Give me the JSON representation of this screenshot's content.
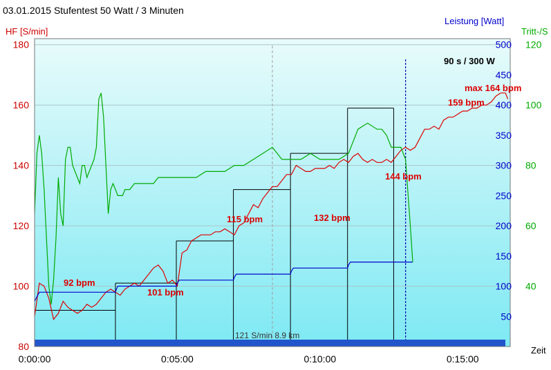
{
  "chart_data": {
    "type": "line",
    "title": "03.01.2015 Stufentest 50 Watt / 3 Minuten",
    "left_axis_label": "HF [S/min]",
    "right_axis1_label": "Leistung [Watt]",
    "right_axis2_label": "Tritt-/S",
    "xlabel": "Zeit",
    "x_ticks": [
      "0:00:00",
      "0:05:00",
      "0:10:00",
      "0:15:00"
    ],
    "hf_ticks": [
      "80",
      "100",
      "120",
      "140",
      "160",
      "180"
    ],
    "watt_ticks": [
      "50",
      "100",
      "150",
      "200",
      "250",
      "300",
      "350",
      "400",
      "450",
      "500"
    ],
    "cad_ticks": [
      "40",
      "60",
      "80",
      "100",
      "120"
    ],
    "xlim_seconds": [
      0,
      1000
    ],
    "hf_ylim": [
      80,
      182
    ],
    "watt_ylim": [
      0,
      510
    ],
    "cad_ylim": [
      20,
      122
    ],
    "grid": true,
    "colors": {
      "plot_top": "#e8fbfb",
      "plot_bottom": "#7ee9f3",
      "heart_rate": "#dd0000",
      "power": "#0000cc",
      "cadence": "#00aa00",
      "annotation": "#dd0000",
      "left_axis": "#cc0000",
      "right_axis1": "#0000cc",
      "right_axis2": "#00aa00",
      "distance_bar": "#2255cc"
    },
    "series": [
      {
        "name": "HF [S/min]",
        "axis": "hf",
        "x": [
          0,
          10,
          20,
          30,
          40,
          50,
          60,
          70,
          80,
          90,
          100,
          110,
          120,
          130,
          140,
          150,
          160,
          170,
          180,
          185,
          190,
          200,
          210,
          220,
          230,
          240,
          250,
          260,
          270,
          280,
          290,
          300,
          310,
          320,
          330,
          340,
          350,
          360,
          370,
          380,
          390,
          400,
          410,
          420,
          430,
          440,
          450,
          460,
          470,
          480,
          490,
          500,
          510,
          520,
          530,
          540,
          550,
          560,
          570,
          580,
          590,
          600,
          610,
          620,
          630,
          640,
          650,
          660,
          670,
          680,
          690,
          700,
          710,
          720,
          730,
          740,
          750,
          760,
          770,
          780,
          790,
          800,
          810,
          820,
          830,
          840,
          850,
          860,
          870,
          880,
          890,
          900,
          910,
          920,
          930,
          940,
          950,
          960,
          970,
          980,
          990,
          995
        ],
        "values": [
          90,
          101,
          100,
          96,
          89,
          91,
          95,
          93,
          92,
          91,
          92,
          94,
          93,
          94,
          96,
          98,
          99,
          98,
          97,
          98,
          99,
          100,
          101,
          100,
          102,
          104,
          106,
          107,
          105,
          101,
          102,
          100,
          111,
          112,
          115,
          116,
          117,
          117,
          117,
          118,
          118,
          119,
          118,
          117,
          120,
          121,
          124,
          127,
          126,
          129,
          131,
          133,
          133,
          135,
          137,
          137,
          140,
          139,
          138,
          138,
          139,
          139,
          139,
          140,
          139,
          141,
          142,
          141,
          143,
          144,
          142,
          141,
          142,
          141,
          141,
          142,
          141,
          143,
          145,
          146,
          145,
          146,
          149,
          152,
          152,
          153,
          152,
          155,
          156,
          156,
          157,
          158,
          158,
          159,
          159,
          160,
          160,
          161,
          163,
          164,
          164,
          162
        ]
      },
      {
        "name": "Leistung [Watt]",
        "axis": "watt",
        "x": [
          0,
          10,
          40,
          100,
          170,
          172,
          175,
          180,
          200,
          240,
          298,
          300,
          304,
          400,
          418,
          420,
          424,
          520,
          538,
          540,
          544,
          640,
          658,
          660,
          664,
          755,
          780,
          795
        ],
        "values": [
          75,
          90,
          90,
          90,
          90,
          95,
          100,
          100,
          100,
          100,
          100,
          105,
          110,
          110,
          110,
          115,
          120,
          120,
          120,
          125,
          130,
          130,
          130,
          135,
          140,
          140,
          140,
          140
        ]
      },
      {
        "name": "Tritt-/S",
        "axis": "cad",
        "x": [
          0,
          5,
          10,
          15,
          20,
          25,
          30,
          35,
          40,
          45,
          50,
          55,
          60,
          65,
          70,
          75,
          80,
          85,
          90,
          95,
          100,
          105,
          110,
          115,
          120,
          125,
          130,
          135,
          140,
          145,
          150,
          155,
          160,
          165,
          170,
          175,
          180,
          185,
          190,
          195,
          200,
          210,
          220,
          230,
          240,
          250,
          260,
          270,
          280,
          290,
          300,
          320,
          340,
          360,
          380,
          400,
          420,
          440,
          460,
          480,
          500,
          520,
          540,
          560,
          580,
          600,
          620,
          640,
          660,
          680,
          700,
          720,
          730,
          740,
          750,
          760,
          770,
          780,
          790,
          795
        ],
        "values": [
          64,
          84,
          90,
          84,
          72,
          56,
          40,
          34,
          42,
          56,
          76,
          64,
          60,
          82,
          86,
          86,
          80,
          78,
          76,
          74,
          80,
          80,
          76,
          78,
          80,
          82,
          86,
          102,
          104,
          96,
          80,
          64,
          72,
          74,
          72,
          70,
          70,
          70,
          72,
          72,
          72,
          74,
          74,
          74,
          74,
          74,
          76,
          76,
          76,
          76,
          76,
          76,
          76,
          78,
          78,
          78,
          80,
          80,
          82,
          84,
          86,
          82,
          82,
          82,
          84,
          82,
          82,
          82,
          84,
          92,
          94,
          92,
          92,
          90,
          86,
          86,
          86,
          82,
          60,
          48
        ]
      }
    ],
    "stages": [
      {
        "x_start": 0,
        "x_end": 170,
        "hf": 92
      },
      {
        "x_start": 170,
        "x_end": 298,
        "hf": 101
      },
      {
        "x_start": 298,
        "x_end": 418,
        "hf": 115
      },
      {
        "x_start": 418,
        "x_end": 538,
        "hf": 132
      },
      {
        "x_start": 538,
        "x_end": 658,
        "hf": 144
      },
      {
        "x_start": 658,
        "x_end": 755,
        "hf": 159
      }
    ],
    "annotations": [
      "92 bpm",
      "101 bpm",
      "115 bpm",
      "132 bpm",
      "144 bpm",
      "159 bpm",
      "max 164 bpm",
      "90 s / 300 W"
    ],
    "footer_text": "121 S/min 8.9 km",
    "marker_x": 780,
    "midline_x": 500
  }
}
